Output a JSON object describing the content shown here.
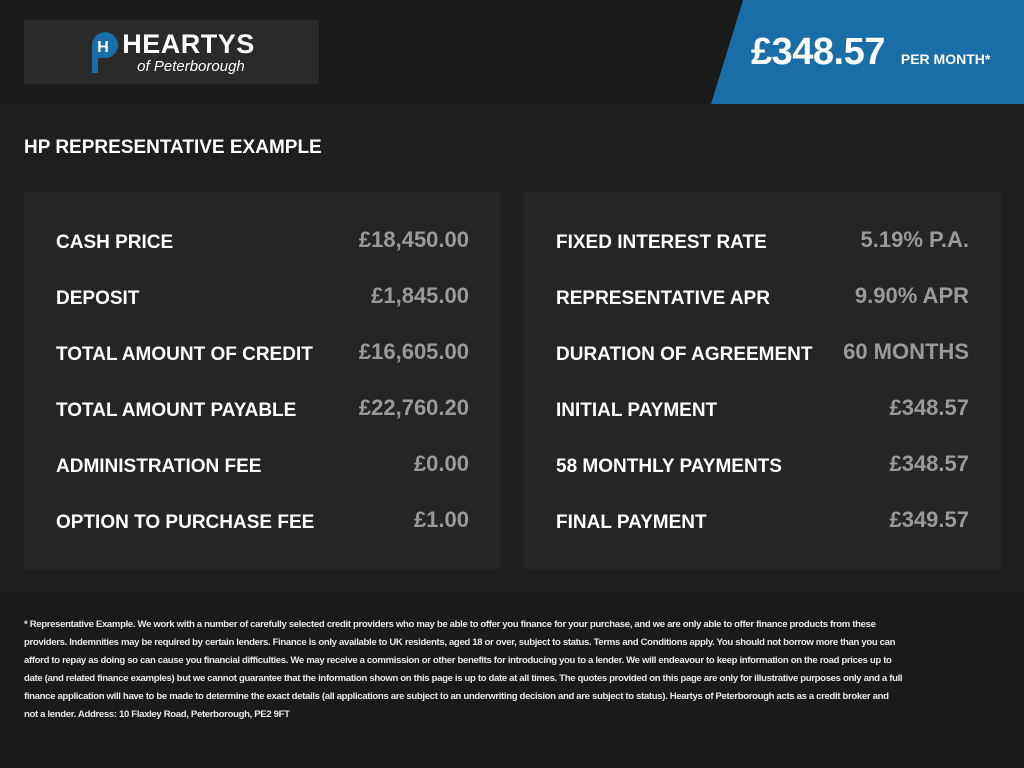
{
  "brand": {
    "logo_letter": "H",
    "name": "HEARTYS",
    "sub": "of Peterborough",
    "color": "#1a6ea8"
  },
  "banner": {
    "price": "£348.57",
    "per": "PER MONTH*",
    "color": "#1a6ea8"
  },
  "section_title": "HP REPRESENTATIVE EXAMPLE",
  "left": [
    {
      "label": "CASH PRICE",
      "value": "£18,450.00"
    },
    {
      "label": "DEPOSIT",
      "value": "£1,845.00"
    },
    {
      "label": "TOTAL AMOUNT OF CREDIT",
      "value": "£16,605.00"
    },
    {
      "label": "TOTAL AMOUNT PAYABLE",
      "value": "£22,760.20"
    },
    {
      "label": "ADMINISTRATION FEE",
      "value": "£0.00"
    },
    {
      "label": "OPTION TO PURCHASE FEE",
      "value": "£1.00"
    }
  ],
  "right": [
    {
      "label": "FIXED INTEREST RATE",
      "value": "5.19% P.A."
    },
    {
      "label": "REPRESENTATIVE APR",
      "value": "9.90% APR"
    },
    {
      "label": "DURATION OF AGREEMENT",
      "value": "60 MONTHS"
    },
    {
      "label": "INITIAL PAYMENT",
      "value": "£348.57"
    },
    {
      "label": "58 MONTHLY PAYMENTS",
      "value": "£348.57"
    },
    {
      "label": "FINAL PAYMENT",
      "value": "£349.57"
    }
  ],
  "disclaimer": "* Representative Example. We work with a number of carefully selected credit providers who may be able to offer you finance for your purchase, and we are only able to offer finance products from these providers. Indemnities may be required by certain lenders. Finance is only available to UK residents, aged 18 or over, subject to status. Terms and Conditions apply. You should not borrow more than you can afford to repay as doing so can cause you financial difficulties. We may receive a commission or other benefits for introducing you to a lender. We will endeavour to keep information on the road prices up to date (and related finance examples) but we cannot guarantee that the information shown on this page is up to date at all times. The quotes provided on this page are only for illustrative purposes only and a full finance application will have to be made to determine the exact details (all applications are subject to an underwriting decision and are subject to status). Heartys of Peterborough acts as a credit broker and not a lender. Address: 10 Flaxley Road, Peterborough, PE2 9FT"
}
